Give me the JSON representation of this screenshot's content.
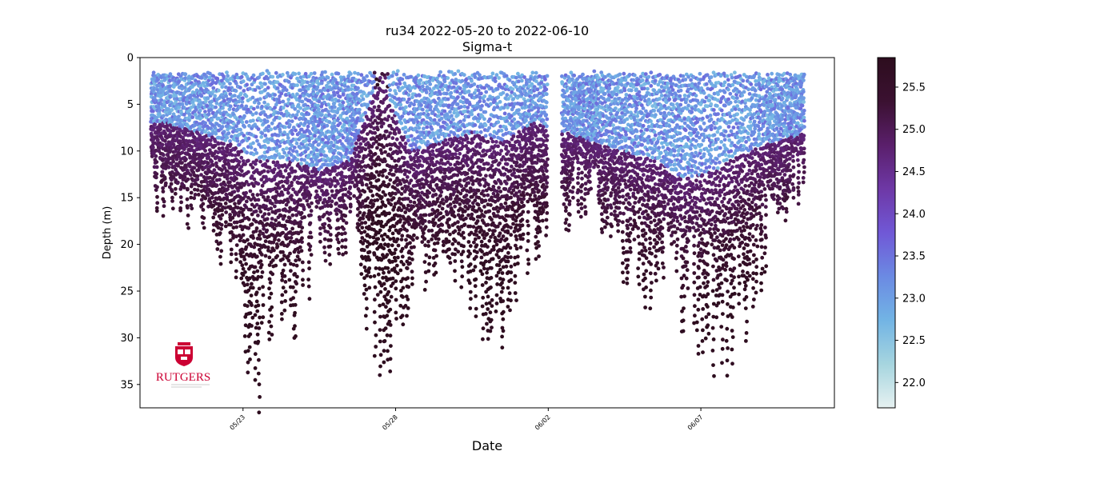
{
  "chart_data": {
    "type": "scatter",
    "title": "ru34 2022-05-20 to 2022-06-10",
    "subtitle": "Sigma-t",
    "xlabel": "Date",
    "ylabel": "Depth (m)",
    "x_ticks": [
      "05/23",
      "05/28",
      "06/02",
      "06/07"
    ],
    "y_ticks": [
      0,
      5,
      10,
      15,
      20,
      25,
      30,
      35
    ],
    "ylim": [
      37.5,
      0
    ],
    "y_inverted": true,
    "xlim": [
      "2022-05-19T15:00",
      "2022-06-11T09:00"
    ],
    "x_data_range": [
      "2022-05-20T00:00",
      "2022-06-10T09:00"
    ],
    "data_gap": [
      "2022-06-01T23:00",
      "2022-06-02T11:00"
    ],
    "colorbar": {
      "label_values": [
        22.0,
        22.5,
        23.0,
        23.5,
        24.0,
        24.5,
        25.0,
        25.5
      ],
      "vmin": 21.7,
      "vmax": 25.85,
      "colormap": "dense",
      "colors": [
        "#e6f1f1",
        "#a6d5df",
        "#72b4e4",
        "#6b8ae3",
        "#7058d6",
        "#6e38a6",
        "#5a1f6b",
        "#3b1131",
        "#2d0d1e"
      ]
    },
    "profile_envelope": {
      "description_dates": [
        "05/20",
        "05/22",
        "05/23",
        "05/24",
        "05/25",
        "05/26",
        "05/27",
        "05/28",
        "05/29",
        "05/30",
        "05/31",
        "06/01",
        "06/03",
        "06/04",
        "06/05",
        "06/06",
        "06/07",
        "06/08",
        "06/09",
        "06/10"
      ],
      "max_depth_m": [
        16,
        24,
        37,
        31,
        22,
        20,
        35,
        31,
        20,
        28,
        32,
        21,
        16,
        24,
        26,
        28,
        36,
        30,
        20,
        13
      ],
      "surface_layer_bottom_m": [
        7,
        9,
        11,
        11,
        12,
        11,
        2,
        10,
        9,
        8,
        9,
        7,
        9,
        10,
        11,
        13,
        12,
        10,
        9,
        8
      ]
    },
    "logo_text": "RUTGERS"
  }
}
